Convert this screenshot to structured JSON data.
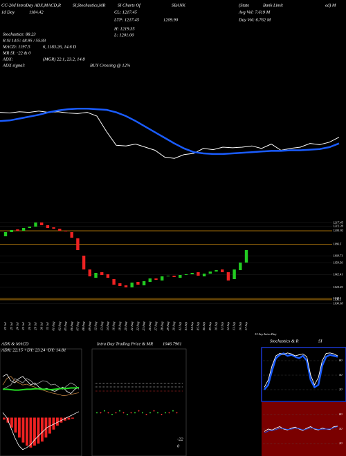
{
  "header": {
    "title_parts": [
      "CC-20d IntraDay ADX,MACD,R",
      "SI,Stochastics,MR",
      "SI Charts Of",
      "SBANK",
      "(State",
      "Bank Limit",
      "ed) M"
    ],
    "day": "1d  Day",
    "day_value": "1184.42",
    "cl": "CL: 1217.45",
    "ltp": "LTP: 1217.45",
    "ltp2": "1209.90",
    "avg_vol": "Avg Vol: 7.619 M",
    "day_vol": "Day Vol: 6.762 M",
    "high": "H: 1219.35",
    "low": "L: 1201.00"
  },
  "stats": [
    [
      "Stochastics: 88.23"
    ],
    [
      "R SI 14/5: 48.95 / 55.83"
    ],
    [
      "MACD: 1197.5",
      "6, 1183.26, 14.6  D"
    ],
    [
      "MR  SI: -22 & 0"
    ],
    [
      "ADX:",
      "(MGR) 22.1, 23.2, 14.8"
    ],
    [
      "ADX  signal:",
      "BUY Crossing @ 12%"
    ]
  ],
  "overlay": {
    "ylim": [
      0,
      100
    ],
    "series": [
      {
        "color": "#ffffff",
        "values": [
          86,
          85,
          87,
          86,
          88,
          86,
          87,
          85,
          84,
          86,
          80,
          55,
          33,
          32,
          35,
          30,
          25,
          14,
          12,
          18,
          20,
          28,
          26,
          30,
          29,
          30,
          32,
          28,
          35,
          25,
          28,
          30,
          36,
          34,
          38,
          46
        ]
      },
      {
        "color": "#1a5cff",
        "values": [
          72,
          73,
          76,
          79,
          82,
          86,
          89,
          91,
          92,
          92,
          91,
          90,
          86,
          80,
          72,
          63,
          54,
          45,
          36,
          28,
          22,
          20,
          19,
          19,
          20,
          21,
          22,
          23,
          24,
          24,
          25,
          25,
          26,
          27,
          30,
          36
        ]
      }
    ]
  },
  "chart_data": {
    "type": "candlestick",
    "categories": [
      "22 Jul",
      "23 Jul",
      "24 Jul",
      "25 Jul",
      "26 Jul",
      "29 Jul",
      "30 Jul",
      "31 Jul",
      "01 Aug",
      "02 Aug",
      "05 Aug",
      "06 Aug",
      "07 Aug",
      "08 Aug",
      "09 Aug",
      "12 Aug",
      "13 Aug",
      "14 Aug",
      "16 Aug",
      "19 Aug",
      "20 Aug",
      "21 Aug",
      "22 Aug",
      "23 Aug",
      "26 Aug",
      "27 Aug",
      "28 Aug",
      "29 Aug",
      "30 Aug",
      "02 Sep",
      "03 Sep",
      "04 Sep",
      "05 Sep",
      "06 Sep",
      "09 Sep",
      "10 Sep",
      "11 Sep",
      "12 Sep",
      "13 Sep",
      "16 Sep",
      "17 Sep"
    ],
    "open": [
      1198,
      1204,
      1208,
      1206,
      1210,
      1212,
      1218,
      1214,
      1211,
      1209,
      1206,
      1204,
      1195,
      1170,
      1150,
      1138,
      1146,
      1143,
      1136,
      1130,
      1127,
      1124,
      1132,
      1127,
      1132,
      1137,
      1134,
      1140,
      1141,
      1138,
      1142,
      1143,
      1146,
      1140,
      1144,
      1147,
      1150,
      1146,
      1136,
      1149,
      1160
    ],
    "close": [
      1204,
      1207,
      1206,
      1210,
      1212,
      1218,
      1214,
      1210,
      1209,
      1206,
      1205,
      1196,
      1178,
      1150,
      1140,
      1145,
      1142,
      1138,
      1128,
      1126,
      1124,
      1131,
      1128,
      1133,
      1137,
      1135,
      1140,
      1141,
      1139,
      1142,
      1143,
      1145,
      1141,
      1144,
      1147,
      1149,
      1146,
      1134,
      1150,
      1160,
      1178
    ],
    "up_color": "#22cc22",
    "down_color": "#ee2222",
    "ylim": [
      1095,
      1225
    ],
    "yticks": [
      1217.45,
      1212.39,
      1205.92,
      1186.5,
      1169.71,
      1159.56,
      1142.41,
      1124.25,
      1108.1,
      1106.1,
      1100.38
    ],
    "levels": [
      1205.92,
      1186.5,
      1108.1,
      1106.1
    ],
    "level_color": "#c8860a",
    "footer": "13 Sep Intra Day"
  },
  "panels": {
    "adx": {
      "title": "ADX  & MACD",
      "subtitle": "ADX: 22.15 +DY: 23.24  -DY: 14.81",
      "ylim": [
        0,
        100
      ],
      "series": [
        {
          "color": "#c08040",
          "values": [
            40,
            55,
            60,
            50,
            45,
            40,
            42,
            38,
            35,
            30,
            28,
            25,
            22,
            20,
            18,
            15,
            16,
            18,
            20,
            22
          ]
        },
        {
          "color": "#ffffff",
          "values": [
            60,
            65,
            50,
            45,
            55,
            60,
            50,
            40,
            45,
            35,
            30,
            32,
            28,
            25,
            30,
            35,
            25,
            20,
            30,
            35
          ]
        },
        {
          "color": "#aaaaaa",
          "values": [
            30,
            35,
            40,
            55,
            50,
            45,
            55,
            50,
            40,
            45,
            50,
            48,
            40,
            42,
            35,
            30,
            38,
            45,
            40,
            30
          ]
        },
        {
          "color": "#22dd22",
          "values": [
            30,
            30,
            29,
            28,
            28,
            29,
            30,
            30,
            31,
            31,
            30,
            30,
            29,
            30,
            31,
            32,
            32,
            33,
            33,
            34
          ]
        }
      ]
    },
    "macd": {
      "ylim": [
        -35,
        10
      ],
      "bar_color": "#ee2222",
      "values": [
        -2,
        -5,
        -10,
        -15,
        -20,
        -25,
        -28,
        -30,
        -28,
        -26,
        -24,
        -20,
        -16,
        -12,
        -8,
        -5,
        -3,
        -2,
        -1,
        0
      ],
      "line": [
        5,
        0,
        -10,
        -20,
        -28,
        -32,
        -30,
        -27,
        -22,
        -18,
        -14,
        -10,
        -8,
        -6,
        -4,
        -2,
        0,
        2,
        4,
        6
      ]
    },
    "mrsi": {
      "title": "Intra Day Trading Price  & MR",
      "value": "1046.7961",
      "ylim": [
        1030,
        1060
      ],
      "values": [
        1046,
        1046,
        1047,
        1046,
        1045,
        1046,
        1047,
        1046,
        1045,
        1046,
        1046,
        1047,
        1046,
        1045,
        1046,
        1047,
        1046,
        1045,
        1046,
        1046,
        1047,
        1046
      ],
      "low_label": "-22",
      "zero_label": "0"
    },
    "stoch": {
      "title": "Stochastics & R",
      "title2": "SI",
      "ylim": [
        0,
        100
      ],
      "yticks": [
        80,
        50,
        20
      ],
      "series": [
        {
          "color": "#1a5cff",
          "values": [
            20,
            30,
            60,
            85,
            92,
            95,
            90,
            92,
            88,
            85,
            90,
            80,
            40,
            25,
            30,
            70,
            88,
            92,
            90,
            88
          ]
        },
        {
          "color": "#ffffff",
          "values": [
            25,
            40,
            70,
            90,
            95,
            93,
            96,
            94,
            90,
            92,
            94,
            88,
            50,
            30,
            45,
            80,
            95,
            96,
            94,
            90
          ]
        }
      ]
    },
    "rsi": {
      "ylim": [
        0,
        100
      ],
      "yticks": [
        80,
        50,
        20
      ],
      "series": [
        {
          "color": "#ffffff",
          "values": [
            45,
            50,
            48,
            52,
            55,
            50,
            48,
            52,
            54,
            50,
            47,
            52,
            55,
            50,
            48,
            52,
            50,
            49,
            55,
            56
          ]
        },
        {
          "color": "#1a5cff",
          "values": [
            42,
            46,
            47,
            49,
            52,
            51,
            49,
            50,
            52,
            51,
            48,
            50,
            53,
            51,
            49,
            50,
            50,
            50,
            53,
            55
          ]
        }
      ]
    }
  }
}
